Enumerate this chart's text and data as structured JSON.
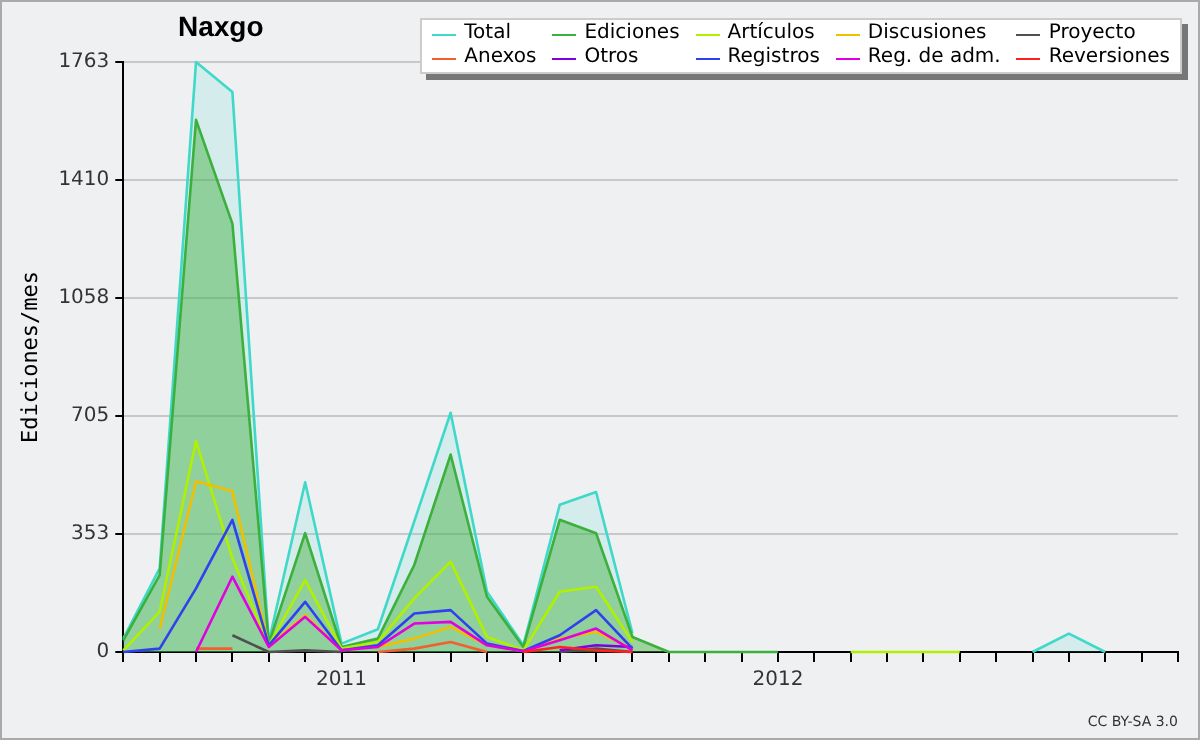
{
  "chart_data": {
    "type": "line",
    "title": "Naxgo",
    "ylabel": "Ediciones/mes",
    "x": [
      "2010-07",
      "2010-08",
      "2010-09",
      "2010-10",
      "2010-11",
      "2010-12",
      "2011-01",
      "2011-02",
      "2011-03",
      "2011-04",
      "2011-05",
      "2011-06",
      "2011-07",
      "2011-08",
      "2011-09",
      "2011-10",
      "2011-11",
      "2011-12",
      "2012-01",
      "2012-02",
      "2012-03",
      "2012-04",
      "2012-05",
      "2012-06",
      "2012-07",
      "2012-08",
      "2012-09",
      "2012-10"
    ],
    "series": [
      {
        "name": "Total",
        "color": "#40d8c8",
        "type": "area",
        "values": [
          40,
          250,
          1763,
          1673,
          30,
          507,
          25,
          68,
          390,
          715,
          180,
          20,
          440,
          478,
          56,
          null,
          null,
          null,
          null,
          null,
          null,
          null,
          null,
          null,
          null,
          0,
          55,
          0
        ]
      },
      {
        "name": "Ediciones",
        "color": "#3cb03c",
        "type": "area",
        "values": [
          35,
          230,
          1590,
          1280,
          25,
          355,
          15,
          40,
          260,
          590,
          165,
          15,
          395,
          355,
          45,
          0,
          0,
          0,
          0,
          null,
          null,
          null,
          null,
          null,
          null,
          null,
          null,
          null
        ]
      },
      {
        "name": "Artículos",
        "color": "#b0f000",
        "type": "line",
        "values": [
          5,
          120,
          630,
          280,
          20,
          215,
          10,
          30,
          160,
          270,
          45,
          5,
          180,
          195,
          30,
          null,
          null,
          null,
          null,
          null,
          0,
          0,
          0,
          0,
          null,
          null,
          null,
          null
        ]
      },
      {
        "name": "Discusiones",
        "color": "#f0c000",
        "type": "line",
        "values": [
          null,
          70,
          510,
          480,
          20,
          110,
          5,
          15,
          40,
          75,
          20,
          3,
          40,
          60,
          10,
          null,
          null,
          null,
          null,
          null,
          null,
          null,
          null,
          null,
          null,
          null,
          null,
          null
        ]
      },
      {
        "name": "Proyecto",
        "color": "#505050",
        "type": "line",
        "values": [
          null,
          null,
          null,
          50,
          0,
          5,
          0,
          null,
          null,
          null,
          null,
          null,
          0,
          10,
          0,
          null,
          null,
          null,
          null,
          null,
          null,
          null,
          null,
          null,
          null,
          null,
          null,
          null
        ]
      },
      {
        "name": "Anexos",
        "color": "#f06030",
        "type": "line",
        "values": [
          null,
          null,
          10,
          10,
          null,
          null,
          null,
          0,
          10,
          30,
          0,
          null,
          null,
          null,
          null,
          null,
          null,
          null,
          null,
          null,
          null,
          null,
          null,
          null,
          null,
          null,
          null,
          null
        ]
      },
      {
        "name": "Otros",
        "color": "#8000e0",
        "type": "line",
        "values": [
          null,
          null,
          null,
          null,
          null,
          null,
          null,
          null,
          null,
          null,
          null,
          null,
          5,
          20,
          15,
          null,
          null,
          null,
          null,
          null,
          null,
          null,
          null,
          null,
          null,
          null,
          null,
          null
        ]
      },
      {
        "name": "Registros",
        "color": "#3040f0",
        "type": "line",
        "values": [
          0,
          10,
          190,
          395,
          20,
          150,
          5,
          20,
          115,
          125,
          25,
          3,
          50,
          125,
          10,
          null,
          null,
          null,
          null,
          null,
          null,
          null,
          null,
          null,
          null,
          null,
          null,
          null
        ]
      },
      {
        "name": "Reg. de adm.",
        "color": "#e000e0",
        "type": "line",
        "values": [
          null,
          null,
          0,
          225,
          15,
          105,
          5,
          15,
          85,
          90,
          20,
          2,
          35,
          70,
          5,
          null,
          null,
          null,
          null,
          null,
          null,
          null,
          null,
          null,
          null,
          null,
          null,
          null
        ]
      },
      {
        "name": "Reversiones",
        "color": "#ff2020",
        "type": "line",
        "values": [
          null,
          null,
          null,
          null,
          null,
          null,
          null,
          null,
          null,
          null,
          null,
          0,
          15,
          5,
          0,
          null,
          null,
          null,
          null,
          null,
          null,
          null,
          null,
          null,
          null,
          null,
          null,
          null
        ]
      }
    ],
    "xlim": [
      "2010-07",
      "2012-12"
    ],
    "xticks": [
      {
        "value": "2010-07",
        "label": null
      },
      {
        "value": "2010-08",
        "label": null
      },
      {
        "value": "2010-09",
        "label": null
      },
      {
        "value": "2010-10",
        "label": null
      },
      {
        "value": "2010-11",
        "label": null
      },
      {
        "value": "2010-12",
        "label": null
      },
      {
        "value": "2011-01",
        "label": "2011"
      },
      {
        "value": "2011-02",
        "label": null
      },
      {
        "value": "2011-03",
        "label": null
      },
      {
        "value": "2011-04",
        "label": null
      },
      {
        "value": "2011-05",
        "label": null
      },
      {
        "value": "2011-06",
        "label": null
      },
      {
        "value": "2011-07",
        "label": null
      },
      {
        "value": "2011-08",
        "label": null
      },
      {
        "value": "2011-09",
        "label": null
      },
      {
        "value": "2011-10",
        "label": null
      },
      {
        "value": "2011-11",
        "label": null
      },
      {
        "value": "2011-12",
        "label": null
      },
      {
        "value": "2012-01",
        "label": "2012"
      },
      {
        "value": "2012-02",
        "label": null
      },
      {
        "value": "2012-03",
        "label": null
      },
      {
        "value": "2012-04",
        "label": null
      },
      {
        "value": "2012-05",
        "label": null
      },
      {
        "value": "2012-06",
        "label": null
      },
      {
        "value": "2012-07",
        "label": null
      },
      {
        "value": "2012-08",
        "label": null
      },
      {
        "value": "2012-09",
        "label": null
      },
      {
        "value": "2012-10",
        "label": null
      },
      {
        "value": "2012-11",
        "label": null
      },
      {
        "value": "2012-12",
        "label": null
      }
    ],
    "ylim": [
      0,
      1763
    ],
    "yticks": [
      0,
      353,
      705,
      1058,
      1410,
      1763
    ],
    "grid": "y",
    "legend": "top right",
    "marker": "none",
    "line_style": "solid",
    "annotations": [
      "CC BY-SA 3.0"
    ]
  }
}
